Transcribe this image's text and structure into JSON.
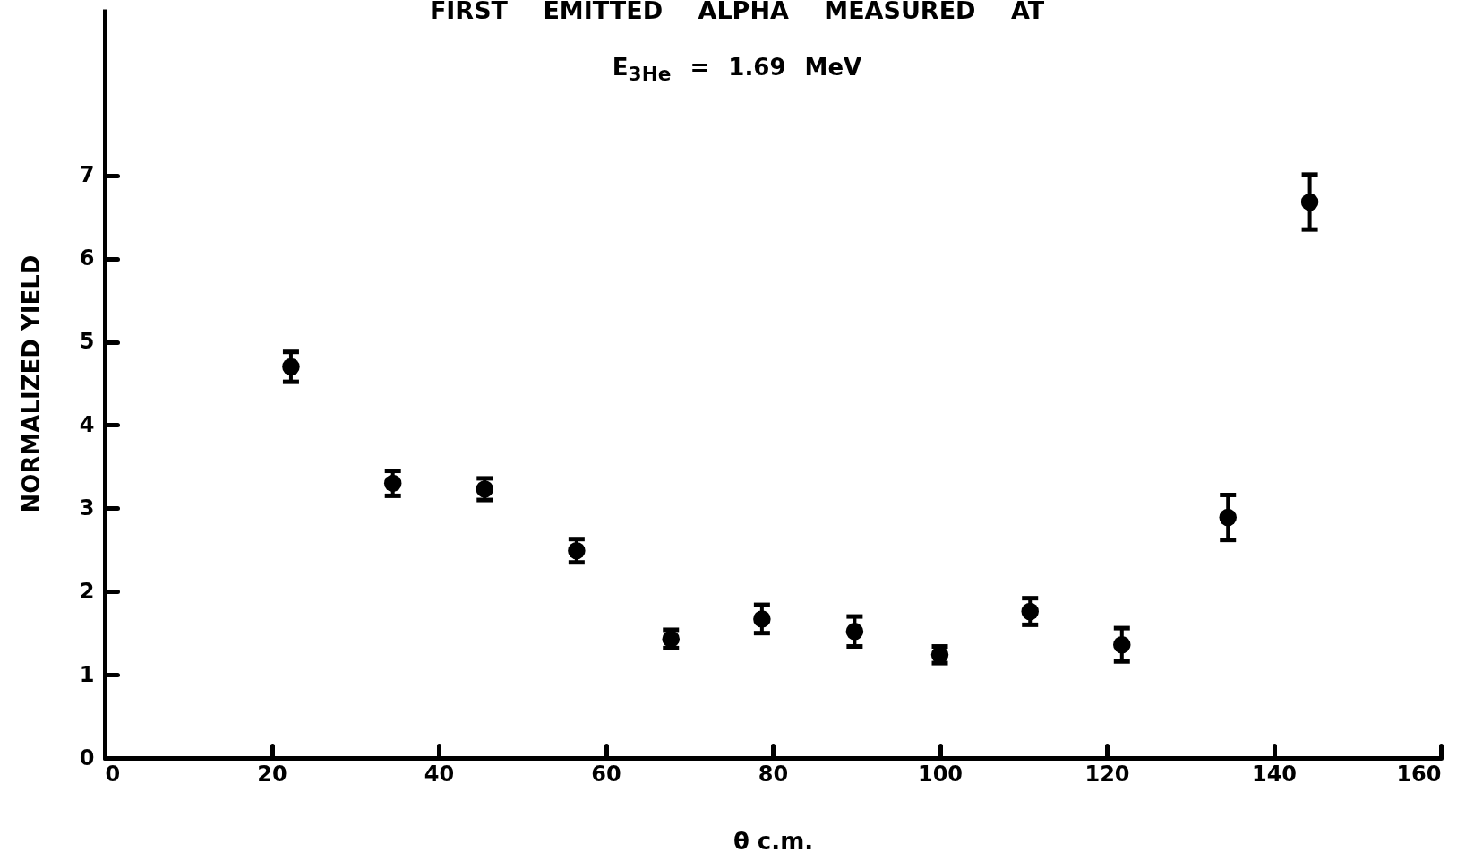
{
  "chart_data": {
    "type": "scatter",
    "title": "FIRST EMITTED ALPHA MEASURED AT",
    "subtitle": "E$_{3He}$ = 1.69 MeV",
    "xlabel": "θ c.m.",
    "ylabel": "NORMALIZED YIELD",
    "x": [
      22.3,
      34.5,
      45.5,
      56.5,
      67.8,
      78.7,
      89.8,
      100,
      110.8,
      121.8,
      134.5,
      144.3
    ],
    "series": [
      {
        "color": "#000000",
        "values": [
          4.7,
          3.3,
          3.23,
          2.49,
          1.43,
          1.67,
          1.52,
          1.24,
          1.76,
          1.36,
          2.89,
          6.68
        ],
        "errors": [
          0.18,
          0.15,
          0.13,
          0.14,
          0.11,
          0.17,
          0.18,
          0.1,
          0.16,
          0.2,
          0.27,
          0.33
        ]
      }
    ],
    "xlim": [
      0,
      160
    ],
    "xticks": [
      0,
      20,
      40,
      60,
      80,
      100,
      120,
      140,
      160
    ],
    "ylim": [
      0,
      9
    ],
    "yticks": [
      0,
      1,
      2,
      3,
      4,
      5,
      6,
      7
    ],
    "marker": "circle",
    "grid": false
  }
}
